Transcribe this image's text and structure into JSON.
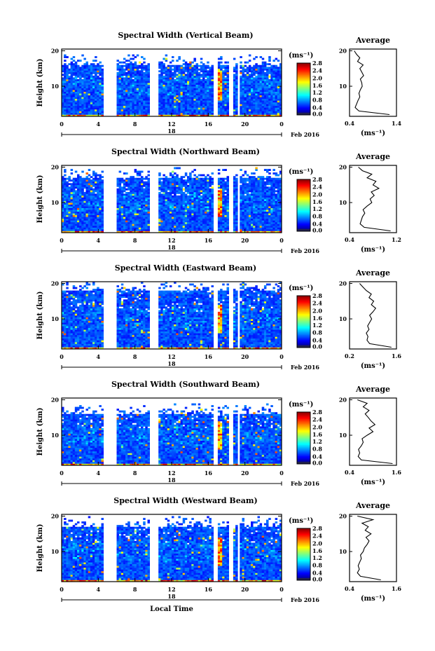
{
  "chart_data": [
    {
      "type": "heatmap",
      "title": "Spectral Width (Vertical Beam)",
      "ylabel": "Height (km)",
      "date_label": "18",
      "month_label": "Feb 2016",
      "x_ticks": [
        "0",
        "4",
        "8",
        "12",
        "16",
        "20",
        "0"
      ],
      "y_ticks": [
        "10",
        "20"
      ],
      "xlim": [
        0,
        24
      ],
      "ylim": [
        1.5,
        20.5
      ],
      "colorbar_unit": "(ms⁻¹)",
      "colorbar_ticks": [
        "0.0",
        "0.4",
        "0.8",
        "1.2",
        "1.6",
        "2.0",
        "2.4",
        "2.8"
      ],
      "gaps_hours": [
        [
          4.6,
          6.0
        ],
        [
          9.7,
          10.5
        ],
        [
          16.6,
          17.0
        ],
        [
          18.3,
          18.6
        ],
        [
          19.1,
          19.4
        ]
      ],
      "average_profile": {
        "title": "Average",
        "xlabel": "(ms⁻¹)",
        "x_ticks": [
          "0.4",
          "1.4"
        ],
        "xlim": [
          0.4,
          1.4
        ],
        "y_ticks": [
          "10",
          "20"
        ],
        "height_km": [
          2,
          3,
          4,
          5,
          6,
          7,
          8,
          9,
          10,
          11,
          12,
          13,
          14,
          15,
          16,
          17,
          18,
          19,
          20
        ],
        "values": [
          1.25,
          0.6,
          0.52,
          0.55,
          0.58,
          0.62,
          0.6,
          0.63,
          0.67,
          0.66,
          0.63,
          0.7,
          0.66,
          0.62,
          0.69,
          0.57,
          0.62,
          0.55,
          0.5
        ]
      }
    },
    {
      "type": "heatmap",
      "title": "Spectral Width (Northward Beam)",
      "ylabel": "Height (km)",
      "date_label": "18",
      "month_label": "Feb 2016",
      "x_ticks": [
        "0",
        "4",
        "8",
        "12",
        "16",
        "20",
        "0"
      ],
      "y_ticks": [
        "10",
        "20"
      ],
      "xlim": [
        0,
        24
      ],
      "ylim": [
        1.5,
        20.5
      ],
      "colorbar_unit": "(ms⁻¹)",
      "colorbar_ticks": [
        "0.0",
        "0.4",
        "0.8",
        "1.2",
        "1.6",
        "2.0",
        "2.4",
        "2.8"
      ],
      "gaps_hours": [
        [
          4.6,
          6.0
        ],
        [
          9.7,
          10.5
        ],
        [
          16.6,
          17.0
        ],
        [
          18.3,
          18.6
        ],
        [
          19.1,
          19.4
        ]
      ],
      "average_profile": {
        "title": "Average",
        "xlabel": "(ms⁻¹)",
        "x_ticks": [
          "0.4",
          "1.2"
        ],
        "xlim": [
          0.4,
          1.2
        ],
        "y_ticks": [
          "10",
          "20"
        ],
        "height_km": [
          2,
          3,
          4,
          5,
          6,
          7,
          8,
          9,
          10,
          11,
          12,
          13,
          14,
          15,
          16,
          17,
          18,
          19,
          20
        ],
        "values": [
          1.1,
          0.65,
          0.58,
          0.6,
          0.62,
          0.66,
          0.63,
          0.7,
          0.78,
          0.75,
          0.82,
          0.77,
          0.9,
          0.8,
          0.85,
          0.7,
          0.78,
          0.62,
          0.55
        ]
      }
    },
    {
      "type": "heatmap",
      "title": "Spectral Width (Eastward Beam)",
      "ylabel": "Height (km)",
      "date_label": "18",
      "month_label": "Feb 2016",
      "x_ticks": [
        "0",
        "4",
        "8",
        "12",
        "16",
        "20",
        "0"
      ],
      "y_ticks": [
        "10",
        "20"
      ],
      "xlim": [
        0,
        24
      ],
      "ylim": [
        1.5,
        20.5
      ],
      "colorbar_unit": "(ms⁻¹)",
      "colorbar_ticks": [
        "0.0",
        "0.4",
        "0.8",
        "1.2",
        "1.6",
        "2.0",
        "2.4",
        "2.8"
      ],
      "gaps_hours": [
        [
          4.6,
          6.0
        ],
        [
          9.7,
          10.5
        ],
        [
          16.6,
          17.0
        ],
        [
          18.3,
          18.6
        ],
        [
          19.1,
          19.4
        ]
      ],
      "average_profile": {
        "title": "Average",
        "xlabel": "(ms⁻¹)",
        "x_ticks": [
          "0.2",
          "1.6"
        ],
        "xlim": [
          0.2,
          1.6
        ],
        "y_ticks": [
          "10",
          "20"
        ],
        "height_km": [
          2,
          3,
          4,
          5,
          6,
          7,
          8,
          9,
          10,
          11,
          12,
          13,
          14,
          15,
          16,
          17,
          18,
          19,
          20
        ],
        "values": [
          1.45,
          0.8,
          0.72,
          0.75,
          0.7,
          0.78,
          0.74,
          0.8,
          0.86,
          0.8,
          0.9,
          0.98,
          0.85,
          0.92,
          0.78,
          0.85,
          0.7,
          0.6,
          0.5
        ]
      }
    },
    {
      "type": "heatmap",
      "title": "Spectral Width (Southward Beam)",
      "ylabel": "Height (km)",
      "date_label": "18",
      "month_label": "Feb 2016",
      "x_ticks": [
        "0",
        "4",
        "8",
        "12",
        "16",
        "20",
        "0"
      ],
      "y_ticks": [
        "10",
        "20"
      ],
      "xlim": [
        0,
        24
      ],
      "ylim": [
        1.5,
        20.5
      ],
      "colorbar_unit": "(ms⁻¹)",
      "colorbar_ticks": [
        "0.0",
        "0.4",
        "0.8",
        "1.2",
        "1.6",
        "2.0",
        "2.4",
        "2.8"
      ],
      "gaps_hours": [
        [
          4.6,
          6.0
        ],
        [
          9.7,
          10.5
        ],
        [
          16.6,
          17.0
        ],
        [
          18.3,
          18.6
        ],
        [
          19.1,
          19.4
        ]
      ],
      "average_profile": {
        "title": "Average",
        "xlabel": "(ms⁻¹)",
        "x_ticks": [
          "0.4",
          "1.6"
        ],
        "xlim": [
          0.4,
          1.6
        ],
        "y_ticks": [
          "10",
          "20"
        ],
        "height_km": [
          2,
          3,
          4,
          5,
          6,
          7,
          8,
          9,
          10,
          11,
          12,
          13,
          14,
          15,
          16,
          17,
          18,
          19,
          20
        ],
        "values": [
          1.5,
          0.7,
          0.62,
          0.66,
          0.63,
          0.7,
          0.75,
          0.72,
          0.85,
          1.0,
          0.9,
          1.05,
          0.95,
          0.88,
          0.8,
          0.9,
          0.75,
          0.85,
          0.6
        ]
      }
    },
    {
      "type": "heatmap",
      "title": "Spectral Width (Westward Beam)",
      "ylabel": "Height (km)",
      "date_label": "18",
      "month_label": "Feb 2016",
      "xlabel": "Local Time",
      "x_ticks": [
        "0",
        "4",
        "8",
        "12",
        "16",
        "20",
        "0"
      ],
      "y_ticks": [
        "10",
        "20"
      ],
      "xlim": [
        0,
        24
      ],
      "ylim": [
        1.5,
        20.5
      ],
      "colorbar_unit": "(ms⁻¹)",
      "colorbar_ticks": [
        "0.0",
        "0.4",
        "0.8",
        "1.2",
        "1.6",
        "2.0",
        "2.4",
        "2.8"
      ],
      "gaps_hours": [
        [
          4.6,
          6.0
        ],
        [
          9.7,
          10.5
        ],
        [
          16.6,
          17.0
        ],
        [
          18.3,
          18.6
        ],
        [
          19.1,
          19.4
        ]
      ],
      "average_profile": {
        "title": "Average",
        "xlabel": "(ms⁻¹)",
        "x_ticks": [
          "0.4",
          "1.6"
        ],
        "xlim": [
          0.4,
          1.6
        ],
        "y_ticks": [
          "10",
          "20"
        ],
        "height_km": [
          2,
          3,
          4,
          5,
          6,
          7,
          8,
          9,
          10,
          11,
          12,
          13,
          14,
          15,
          16,
          17,
          18,
          19,
          20
        ],
        "values": [
          1.2,
          0.68,
          0.6,
          0.65,
          0.62,
          0.66,
          0.7,
          0.68,
          0.75,
          0.78,
          0.85,
          0.9,
          0.82,
          0.95,
          0.8,
          0.88,
          0.72,
          1.0,
          0.6
        ]
      }
    }
  ]
}
